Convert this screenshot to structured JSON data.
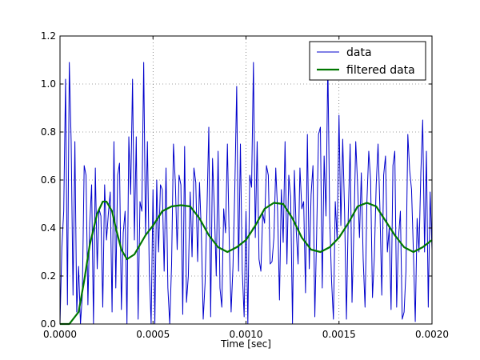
{
  "chart_data": {
    "type": "line",
    "title": "",
    "xlabel": "Time [sec]",
    "ylabel": "",
    "xlim": [
      0.0,
      0.002
    ],
    "ylim": [
      0.0,
      1.2
    ],
    "grid": true,
    "legend_position": "top-right",
    "x_ticks": [
      "0.0000",
      "0.0005",
      "0.0010",
      "0.0015",
      "0.0020"
    ],
    "y_ticks": [
      "0.0",
      "0.2",
      "0.4",
      "0.6",
      "0.8",
      "1.0",
      "1.2"
    ],
    "colors": {
      "data": "#0000cc",
      "filtered": "#007700",
      "grid": "#444444"
    },
    "series": [
      {
        "name": "data",
        "color": "#0000cc",
        "x": [
          0.0,
          1e-05,
          2e-05,
          3e-05,
          4e-05,
          5e-05,
          6e-05,
          7e-05,
          8e-05,
          9e-05,
          0.0001,
          0.00011,
          0.00012,
          0.00013,
          0.00014,
          0.00015,
          0.00016,
          0.00017,
          0.00018,
          0.00019,
          0.0002,
          0.00021,
          0.00022,
          0.00023,
          0.00024,
          0.00025,
          0.00026,
          0.00027,
          0.00028,
          0.00029,
          0.0003,
          0.00031,
          0.00032,
          0.00033,
          0.00034,
          0.00035,
          0.00036,
          0.00037,
          0.00038,
          0.00039,
          0.0004,
          0.00041,
          0.00042,
          0.00043,
          0.00044,
          0.00045,
          0.00046,
          0.00047,
          0.00048,
          0.00049,
          0.0005,
          0.00051,
          0.00052,
          0.00053,
          0.00054,
          0.00055,
          0.00056,
          0.00057,
          0.00058,
          0.00059,
          0.0006,
          0.00061,
          0.00062,
          0.00063,
          0.00064,
          0.00065,
          0.00066,
          0.00067,
          0.00068,
          0.00069,
          0.0007,
          0.00071,
          0.00072,
          0.00073,
          0.00074,
          0.00075,
          0.00076,
          0.00077,
          0.00078,
          0.00079,
          0.0008,
          0.00081,
          0.00082,
          0.00083,
          0.00084,
          0.00085,
          0.00086,
          0.00087,
          0.00088,
          0.00089,
          0.0009,
          0.00091,
          0.00092,
          0.00093,
          0.00094,
          0.00095,
          0.00096,
          0.00097,
          0.00098,
          0.00099,
          0.001,
          0.00101,
          0.00102,
          0.00103,
          0.00104,
          0.00105,
          0.00106,
          0.00107,
          0.00108,
          0.00109,
          0.0011,
          0.00111,
          0.00112,
          0.00113,
          0.00114,
          0.00115,
          0.00116,
          0.00117,
          0.00118,
          0.00119,
          0.0012,
          0.00121,
          0.00122,
          0.00123,
          0.00124,
          0.00125,
          0.00126,
          0.00127,
          0.00128,
          0.00129,
          0.0013,
          0.00131,
          0.00132,
          0.00133,
          0.00134,
          0.00135,
          0.00136,
          0.00137,
          0.00138,
          0.00139,
          0.0014,
          0.00141,
          0.00142,
          0.00143,
          0.00144,
          0.00145,
          0.00146,
          0.00147,
          0.00148,
          0.00149,
          0.0015,
          0.00151,
          0.00152,
          0.00153,
          0.00154,
          0.00155,
          0.00156,
          0.00157,
          0.00158,
          0.00159,
          0.0016,
          0.00161,
          0.00162,
          0.00163,
          0.00164,
          0.00165,
          0.00166,
          0.00167,
          0.00168,
          0.00169,
          0.0017,
          0.00171,
          0.00172,
          0.00173,
          0.00174,
          0.00175,
          0.00176,
          0.00177,
          0.00178,
          0.00179,
          0.0018,
          0.00181,
          0.00182,
          0.00183,
          0.00184,
          0.00185,
          0.00186,
          0.00187,
          0.00188,
          0.00189,
          0.0019,
          0.00191,
          0.00192,
          0.00193,
          0.00194,
          0.00195,
          0.00196,
          0.00197,
          0.00198,
          0.00199,
          0.002
        ],
        "y": [
          0.0,
          0.32,
          0.47,
          1.02,
          0.08,
          1.09,
          0.76,
          0.12,
          0.76,
          0.05,
          0.24,
          0.0,
          0.12,
          0.66,
          0.62,
          0.08,
          0.42,
          0.58,
          0.0,
          0.65,
          0.23,
          0.48,
          0.45,
          0.07,
          0.58,
          0.35,
          0.46,
          0.55,
          0.05,
          0.76,
          0.15,
          0.62,
          0.67,
          0.06,
          0.38,
          0.47,
          0.0,
          0.78,
          0.54,
          1.02,
          0.35,
          0.78,
          0.02,
          0.51,
          0.47,
          1.09,
          0.37,
          0.76,
          0.22,
          0.0,
          0.56,
          0.0,
          0.6,
          0.3,
          0.58,
          0.56,
          0.22,
          0.65,
          0.15,
          0.0,
          0.25,
          0.75,
          0.59,
          0.31,
          0.62,
          0.58,
          0.04,
          0.74,
          0.09,
          0.2,
          0.55,
          0.28,
          0.65,
          0.59,
          0.26,
          0.59,
          0.38,
          0.02,
          0.17,
          0.47,
          0.82,
          0.03,
          0.69,
          0.48,
          0.2,
          0.72,
          0.15,
          0.07,
          0.48,
          0.38,
          0.75,
          0.34,
          0.05,
          0.24,
          0.57,
          0.99,
          0.22,
          0.75,
          0.22,
          0.03,
          0.47,
          0.0,
          0.62,
          0.57,
          1.09,
          0.36,
          0.76,
          0.27,
          0.22,
          0.46,
          0.42,
          0.66,
          0.62,
          0.25,
          0.26,
          0.36,
          0.65,
          0.47,
          0.1,
          0.56,
          0.34,
          0.76,
          0.25,
          0.62,
          0.53,
          0.0,
          0.64,
          0.39,
          0.25,
          0.65,
          0.48,
          0.51,
          0.13,
          0.79,
          0.23,
          0.54,
          0.66,
          0.03,
          0.38,
          0.79,
          0.82,
          0.15,
          0.7,
          0.45,
          1.09,
          0.44,
          0.18,
          0.02,
          0.51,
          0.35,
          0.87,
          0.41,
          0.77,
          0.47,
          0.02,
          0.46,
          0.75,
          0.09,
          0.39,
          0.76,
          0.58,
          0.36,
          0.63,
          0.27,
          0.07,
          0.51,
          0.72,
          0.6,
          0.11,
          0.28,
          0.58,
          0.75,
          0.48,
          0.12,
          0.62,
          0.7,
          0.3,
          0.4,
          0.06,
          0.66,
          0.72,
          0.07,
          0.36,
          0.47,
          0.02,
          0.05,
          0.22,
          0.79,
          0.64,
          0.56,
          0.3,
          0.01,
          0.44,
          0.3,
          0.63,
          0.85,
          0.3,
          0.72,
          0.07,
          0.55,
          0.31
        ]
      },
      {
        "name": "filtered data",
        "color": "#007700",
        "x": [
          0.0,
          5e-05,
          0.0001,
          0.00013,
          0.00016,
          0.0002,
          0.00023,
          0.00025,
          0.00028,
          0.0003,
          0.00033,
          0.00036,
          0.0004,
          0.00043,
          0.00046,
          0.0005,
          0.00055,
          0.0006,
          0.00065,
          0.0007,
          0.00075,
          0.0008,
          0.00085,
          0.0009,
          0.00095,
          0.001,
          0.00105,
          0.0011,
          0.00115,
          0.0012,
          0.00125,
          0.0013,
          0.00135,
          0.0014,
          0.00145,
          0.0015,
          0.00155,
          0.0016,
          0.00165,
          0.0017,
          0.00175,
          0.0018,
          0.00185,
          0.0019,
          0.00195,
          0.002
        ],
        "y": [
          0.0,
          0.0,
          0.05,
          0.18,
          0.33,
          0.46,
          0.51,
          0.51,
          0.47,
          0.4,
          0.31,
          0.27,
          0.29,
          0.33,
          0.37,
          0.41,
          0.47,
          0.49,
          0.495,
          0.49,
          0.44,
          0.37,
          0.32,
          0.3,
          0.32,
          0.35,
          0.41,
          0.48,
          0.505,
          0.5,
          0.44,
          0.36,
          0.31,
          0.3,
          0.32,
          0.36,
          0.42,
          0.49,
          0.505,
          0.49,
          0.43,
          0.37,
          0.32,
          0.3,
          0.32,
          0.35
        ]
      }
    ]
  }
}
